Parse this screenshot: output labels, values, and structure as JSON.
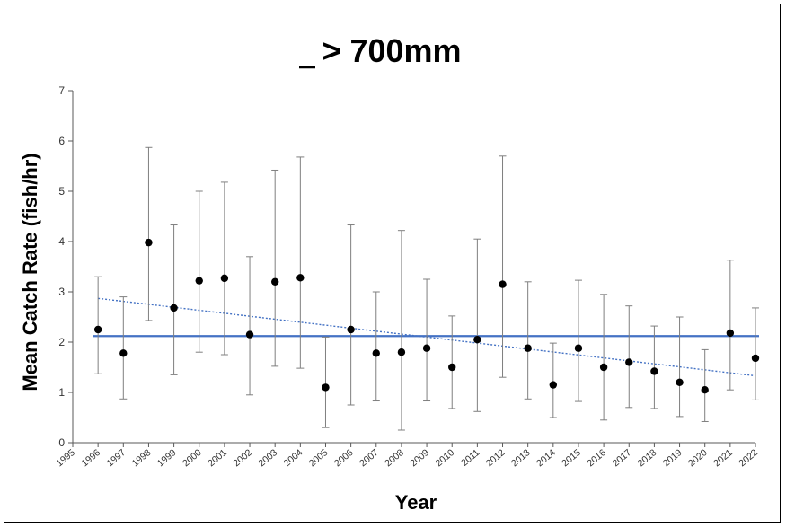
{
  "chart_data": {
    "type": "scatter",
    "title": "> 700mm",
    "title_underlined_char": "_",
    "xlabel": "Year",
    "ylabel": "Mean Catch Rate (fish/hr)",
    "ylim": [
      0,
      7
    ],
    "yticks": [
      "0",
      "1",
      "2",
      "3",
      "4",
      "5",
      "6",
      "7"
    ],
    "x_categories": [
      "1995",
      "1996",
      "1997",
      "1998",
      "1999",
      "2000",
      "2001",
      "2002",
      "2003",
      "2004",
      "2005",
      "2006",
      "2007",
      "2008",
      "2009",
      "2010",
      "2011",
      "2012",
      "2013",
      "2014",
      "2015",
      "2016",
      "2017",
      "2018",
      "2019",
      "2020",
      "2021",
      "2022"
    ],
    "points": [
      {
        "year": "1996",
        "mean": 2.25,
        "low": 1.37,
        "high": 3.3
      },
      {
        "year": "1997",
        "mean": 1.78,
        "low": 0.87,
        "high": 2.9
      },
      {
        "year": "1998",
        "mean": 3.98,
        "low": 2.43,
        "high": 5.87
      },
      {
        "year": "1999",
        "mean": 2.68,
        "low": 1.35,
        "high": 4.33
      },
      {
        "year": "2000",
        "mean": 3.22,
        "low": 1.8,
        "high": 5.0
      },
      {
        "year": "2001",
        "mean": 3.27,
        "low": 1.75,
        "high": 5.18
      },
      {
        "year": "2002",
        "mean": 2.15,
        "low": 0.95,
        "high": 3.7
      },
      {
        "year": "2003",
        "mean": 3.2,
        "low": 1.52,
        "high": 5.42
      },
      {
        "year": "2004",
        "mean": 3.28,
        "low": 1.48,
        "high": 5.68
      },
      {
        "year": "2005",
        "mean": 1.1,
        "low": 0.3,
        "high": 2.1
      },
      {
        "year": "2006",
        "mean": 2.25,
        "low": 0.75,
        "high": 4.33
      },
      {
        "year": "2007",
        "mean": 1.78,
        "low": 0.83,
        "high": 3.0
      },
      {
        "year": "2008",
        "mean": 1.8,
        "low": 0.25,
        "high": 4.22
      },
      {
        "year": "2009",
        "mean": 1.88,
        "low": 0.83,
        "high": 3.25
      },
      {
        "year": "2010",
        "mean": 1.5,
        "low": 0.68,
        "high": 2.52
      },
      {
        "year": "2011",
        "mean": 2.05,
        "low": 0.62,
        "high": 4.05
      },
      {
        "year": "2012",
        "mean": 3.15,
        "low": 1.3,
        "high": 5.7
      },
      {
        "year": "2013",
        "mean": 1.88,
        "low": 0.87,
        "high": 3.2
      },
      {
        "year": "2014",
        "mean": 1.15,
        "low": 0.5,
        "high": 1.98
      },
      {
        "year": "2015",
        "mean": 1.88,
        "low": 0.82,
        "high": 3.23
      },
      {
        "year": "2016",
        "mean": 1.5,
        "low": 0.45,
        "high": 2.95
      },
      {
        "year": "2017",
        "mean": 1.6,
        "low": 0.7,
        "high": 2.72
      },
      {
        "year": "2018",
        "mean": 1.42,
        "low": 0.68,
        "high": 2.32
      },
      {
        "year": "2019",
        "mean": 1.2,
        "low": 0.52,
        "high": 2.5
      },
      {
        "year": "2020",
        "mean": 1.05,
        "low": 0.42,
        "high": 1.85
      },
      {
        "year": "2021",
        "mean": 2.18,
        "low": 1.05,
        "high": 3.63
      },
      {
        "year": "2022",
        "mean": 1.68,
        "low": 0.85,
        "high": 2.68
      }
    ],
    "mean_line": {
      "value": 2.12,
      "color": "#4472C4"
    },
    "trend_line": {
      "start_year": "1996",
      "start_value": 2.87,
      "end_year": "2022",
      "end_value": 1.33,
      "color": "#4472C4",
      "style": "dotted"
    },
    "colors": {
      "point": "#000000",
      "error_bar": "#7f7f7f",
      "axis": "#595959"
    },
    "grid": false,
    "legend": "none"
  }
}
